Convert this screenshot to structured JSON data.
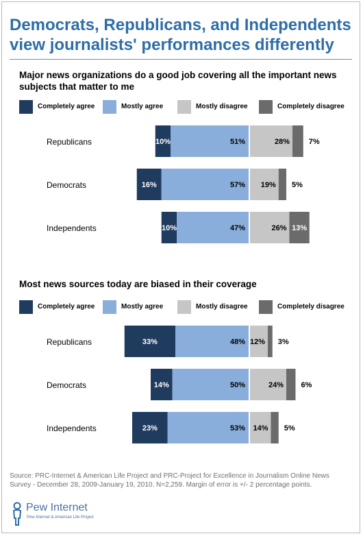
{
  "title_lines": [
    "Democrats, Republicans, and Independents",
    "view journalists' performances differently"
  ],
  "colors": {
    "completely_agree": "#1f3b5e",
    "mostly_agree": "#8aaedb",
    "mostly_disagree": "#c6c6c6",
    "completely_disagree": "#6b6b6b",
    "title": "#2e6da8"
  },
  "legend": [
    "Completely agree",
    "Mostly agree",
    "Mostly disagree",
    "Completely disagree"
  ],
  "chart_data": [
    {
      "type": "bar",
      "orientation": "horizontal-diverging",
      "stacked": true,
      "title": "Major news organizations do a good job covering all the important news subjects that matter to me",
      "categories": [
        "Republicans",
        "Democrats",
        "Independents"
      ],
      "series": [
        {
          "name": "Completely agree",
          "values": [
            10,
            16,
            10
          ],
          "side": "agree"
        },
        {
          "name": "Mostly agree",
          "values": [
            51,
            57,
            47
          ],
          "side": "agree"
        },
        {
          "name": "Mostly disagree",
          "values": [
            28,
            19,
            26
          ],
          "side": "disagree"
        },
        {
          "name": "Completely disagree",
          "values": [
            7,
            5,
            13
          ],
          "side": "disagree"
        }
      ],
      "labels": [
        [
          "10%",
          "51%",
          "28%",
          "7%"
        ],
        [
          "16%",
          "57%",
          "19%",
          "5%"
        ],
        [
          "10%",
          "47%",
          "26%",
          "13%"
        ]
      ],
      "legend_position": "top"
    },
    {
      "type": "bar",
      "orientation": "horizontal-diverging",
      "stacked": true,
      "title": "Most news sources today are biased in their coverage",
      "categories": [
        "Republicans",
        "Democrats",
        "Independents"
      ],
      "series": [
        {
          "name": "Completely agree",
          "values": [
            33,
            14,
            23
          ],
          "side": "agree"
        },
        {
          "name": "Mostly agree",
          "values": [
            48,
            50,
            53
          ],
          "side": "agree"
        },
        {
          "name": "Mostly disagree",
          "values": [
            12,
            24,
            14
          ],
          "side": "disagree"
        },
        {
          "name": "Completely disagree",
          "values": [
            3,
            6,
            5
          ],
          "side": "disagree"
        }
      ],
      "labels": [
        [
          "33%",
          "48%",
          "12%",
          "3%"
        ],
        [
          "14%",
          "50%",
          "24%",
          "6%"
        ],
        [
          "23%",
          "53%",
          "14%",
          "5%"
        ]
      ],
      "legend_position": "top"
    }
  ],
  "source": "Source: PRC-Internet & American Life Project and PRC-Project for Excellence in Journalism Online News Survey - December 28, 2009-January 19, 2010. N=2,259. Margin of error is +/- 2 percentage points.",
  "logo": {
    "main": "Pew Internet",
    "sub": "Pew Internet & American Life Project",
    "icon": "pew-person-icon"
  }
}
